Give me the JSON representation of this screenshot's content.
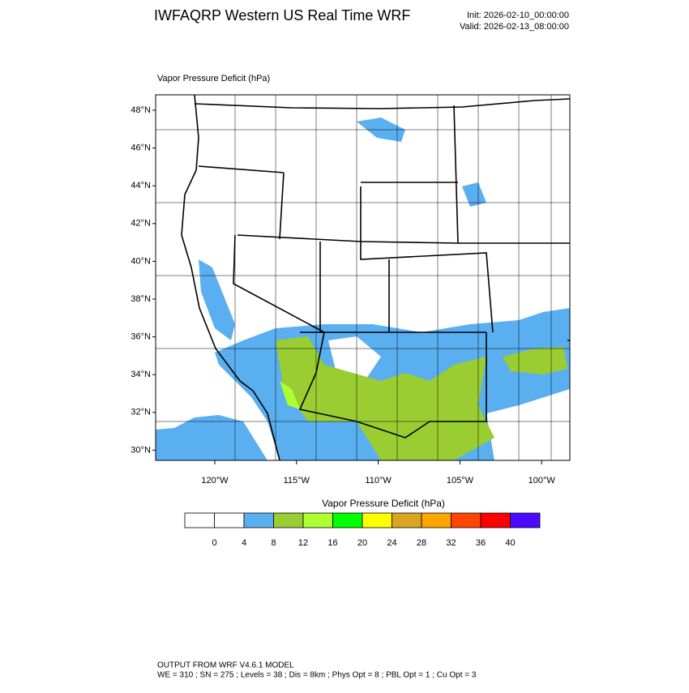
{
  "header": {
    "title": "IWFAQRP Western US Real Time WRF",
    "init": "Init: 2026-02-10_00:00:00",
    "valid": "Valid: 2026-02-13_08:00:00"
  },
  "map": {
    "title": "Vapor Pressure Deficit   (hPa)",
    "lat_labels": [
      "48°N",
      "46°N",
      "44°N",
      "42°N",
      "40°N",
      "38°N",
      "36°N",
      "34°N",
      "32°N",
      "30°N"
    ],
    "lon_labels": [
      "120°W",
      "115°W",
      "110°W",
      "105°W",
      "100°W"
    ]
  },
  "colorbar": {
    "title": "Vapor Pressure Deficit  (hPa)",
    "colors": [
      "#ffffff",
      "#ffffff",
      "#5aaff0",
      "#9acd32",
      "#adff2f",
      "#00ff00",
      "#ffff00",
      "#daa520",
      "#ffa500",
      "#ff4500",
      "#ff0000",
      "#4b0aff"
    ],
    "ticks": [
      "0",
      "4",
      "8",
      "12",
      "16",
      "20",
      "24",
      "28",
      "32",
      "36",
      "40"
    ]
  },
  "footer": {
    "line1": "OUTPUT FROM WRF V4.6.1 MODEL",
    "line2": "WE = 310 ; SN = 275 ; Levels = 38 ; Dis = 8km ; Phys Opt = 8 ; PBL Opt = 1 ; Cu Opt = 3"
  }
}
